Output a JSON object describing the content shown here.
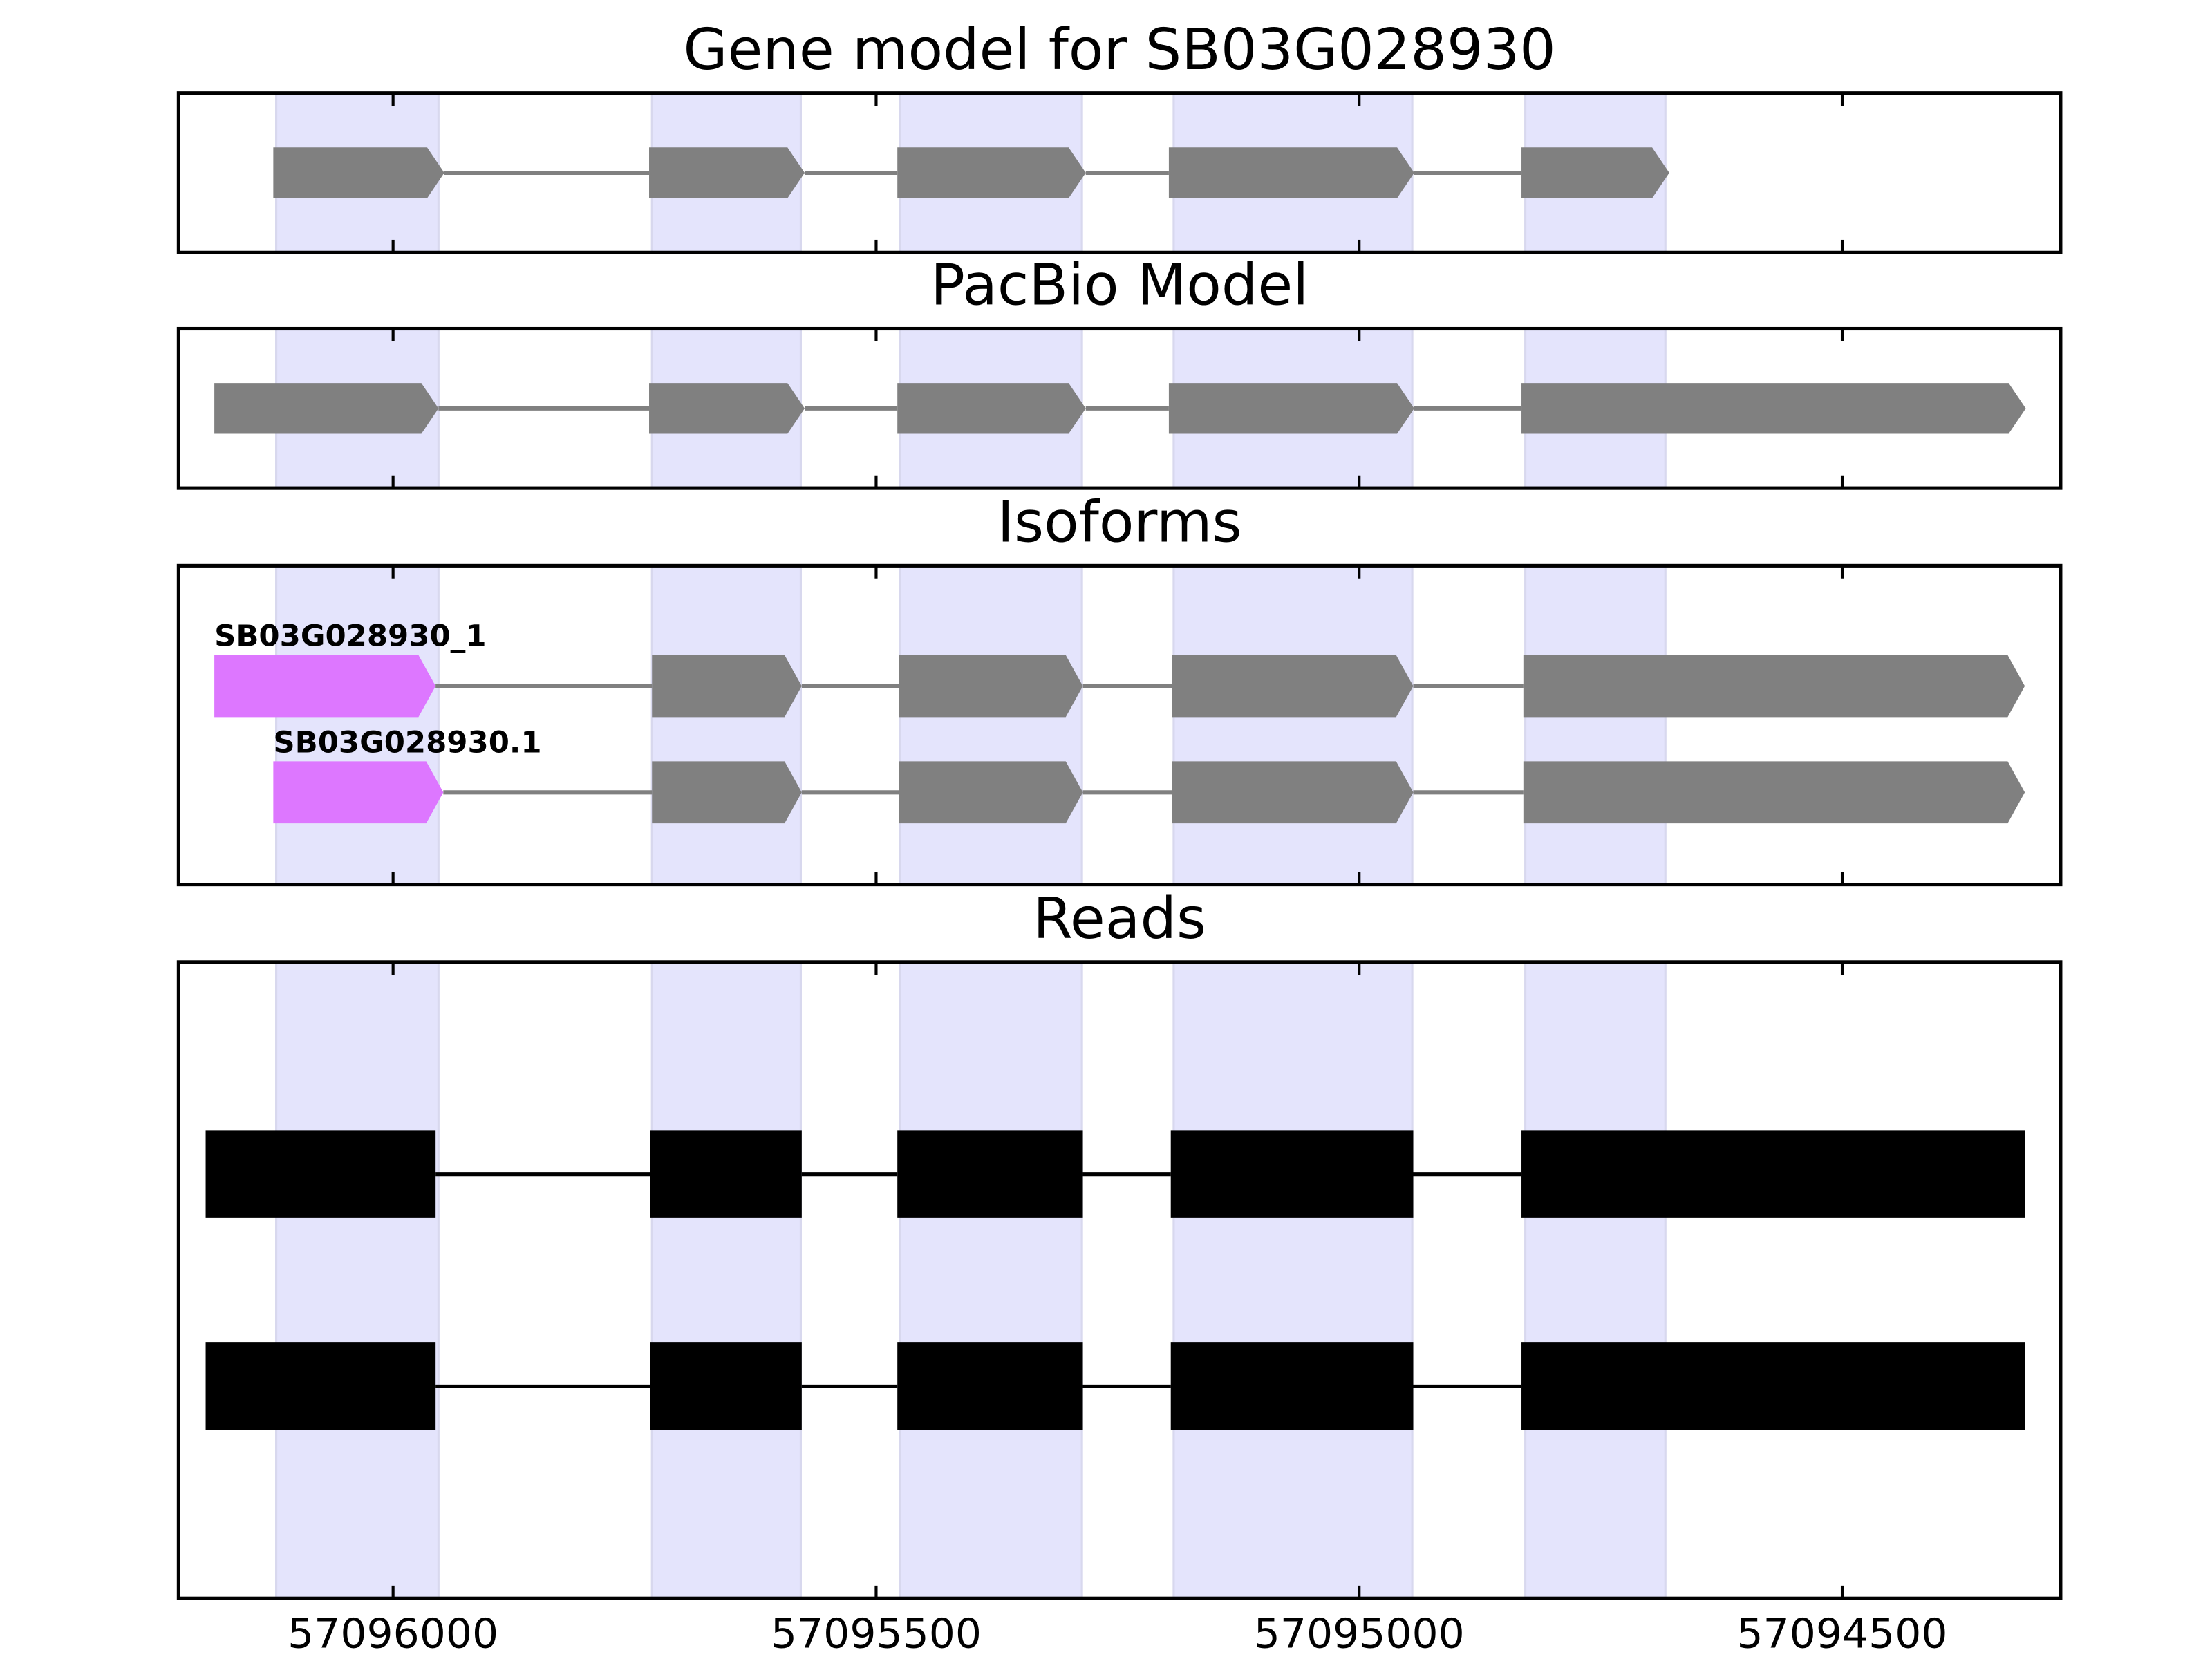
{
  "chart_data": [
    {
      "type": "gene-model",
      "title": "Gene model for SB03G028930",
      "xlim": [
        57096222,
        57094274
      ],
      "xticks": [
        57096000,
        57095500,
        57095000,
        57094500
      ],
      "highlights": [
        [
          57096121,
          57095953
        ],
        [
          57095732,
          57095578
        ],
        [
          57095475,
          57095287
        ],
        [
          57095192,
          57094945
        ],
        [
          57094828,
          57094683
        ]
      ],
      "highlight_color": "#e4e4fc",
      "color": "#808080",
      "exons": [
        [
          57096124,
          57095947
        ],
        [
          57095735,
          57095574
        ],
        [
          57095478,
          57095283
        ],
        [
          57095197,
          57094943
        ],
        [
          57094832,
          57094679
        ]
      ]
    },
    {
      "type": "gene-model",
      "title": "PacBio Model",
      "xlim": [
        57096222,
        57094274
      ],
      "xticks": [
        57096000,
        57095500,
        57095000,
        57094500
      ],
      "highlights": [
        [
          57096121,
          57095953
        ],
        [
          57095732,
          57095578
        ],
        [
          57095475,
          57095287
        ],
        [
          57095192,
          57094945
        ],
        [
          57094828,
          57094683
        ]
      ],
      "highlight_color": "#e4e4fc",
      "color": "#808080",
      "exons": [
        [
          57096185,
          57095953
        ],
        [
          57095735,
          57095574
        ],
        [
          57095478,
          57095283
        ],
        [
          57095197,
          57094943
        ],
        [
          57094832,
          57094310
        ]
      ]
    },
    {
      "type": "isoforms",
      "title": "Isoforms",
      "xlim": [
        57096222,
        57094274
      ],
      "xticks": [
        57096000,
        57095500,
        57095000,
        57094500
      ],
      "highlights": [
        [
          57096121,
          57095953
        ],
        [
          57095732,
          57095578
        ],
        [
          57095475,
          57095287
        ],
        [
          57095192,
          57094945
        ],
        [
          57094828,
          57094683
        ]
      ],
      "highlight_color": "#e4e4fc",
      "series": [
        {
          "name": "SB03G028930_1",
          "color": "#808080",
          "first_exon_color": "#dd77ff",
          "exons": [
            [
              57096185,
              57095956
            ],
            [
              57095732,
              57095577
            ],
            [
              57095476,
              57095286
            ],
            [
              57095194,
              57094944
            ],
            [
              57094830,
              57094311
            ]
          ]
        },
        {
          "name": "SB03G028930.1",
          "color": "#808080",
          "first_exon_color": "#dd77ff",
          "exons": [
            [
              57096124,
              57095948
            ],
            [
              57095732,
              57095577
            ],
            [
              57095476,
              57095286
            ],
            [
              57095194,
              57094944
            ],
            [
              57094830,
              57094311
            ]
          ]
        }
      ]
    },
    {
      "type": "reads",
      "title": "Reads",
      "xlim": [
        57096222,
        57094274
      ],
      "xticks": [
        57096000,
        57095500,
        57095000,
        57094500
      ],
      "show_tick_labels": true,
      "highlights": [
        [
          57096121,
          57095953
        ],
        [
          57095732,
          57095578
        ],
        [
          57095475,
          57095287
        ],
        [
          57095192,
          57094945
        ],
        [
          57094828,
          57094683
        ]
      ],
      "highlight_color": "#e4e4fc",
      "color": "#000000",
      "tracks": [
        {
          "exons": [
            [
              57096194,
              57095956
            ],
            [
              57095734,
              57095577
            ],
            [
              57095478,
              57095286
            ],
            [
              57095195,
              57094944
            ],
            [
              57094832,
              57094311
            ]
          ]
        },
        {
          "exons": [
            [
              57096194,
              57095956
            ],
            [
              57095734,
              57095577
            ],
            [
              57095478,
              57095286
            ],
            [
              57095195,
              57094944
            ],
            [
              57094832,
              57094311
            ]
          ]
        }
      ]
    }
  ]
}
